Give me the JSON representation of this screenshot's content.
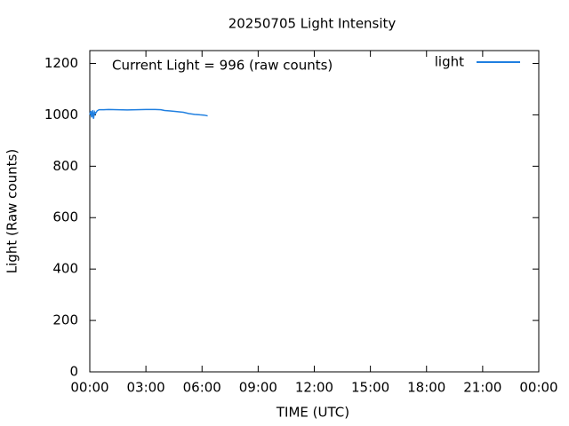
{
  "chart_data": {
    "type": "line",
    "title": "20250705 Light Intensity",
    "x_label": "TIME (UTC)",
    "y_label": "Light (Raw counts)",
    "annotation": "Current Light = 996 (raw counts)",
    "x": [
      0,
      0.05,
      0.1,
      0.15,
      0.2,
      0.25,
      0.3,
      0.4,
      0.5,
      0.75,
      1,
      1.5,
      2,
      2.5,
      3,
      3.5,
      3.8,
      4,
      4.3,
      4.6,
      5,
      5.3,
      5.6,
      5.9,
      6.1,
      6.3
    ],
    "series": [
      {
        "name": "light",
        "color": "#1f7fe0",
        "values": [
          1000,
          1015,
          990,
          1018,
          985,
          1012,
          1005,
          1016,
          1020,
          1020,
          1021,
          1020,
          1019,
          1020,
          1021,
          1021,
          1020,
          1017,
          1015,
          1013,
          1010,
          1005,
          1002,
          1000,
          999,
          996
        ]
      }
    ],
    "xlim": [
      0,
      24
    ],
    "xticks": [
      {
        "value": 0,
        "label": "00:00"
      },
      {
        "value": 3,
        "label": "03:00"
      },
      {
        "value": 6,
        "label": "06:00"
      },
      {
        "value": 9,
        "label": "09:00"
      },
      {
        "value": 12,
        "label": "12:00"
      },
      {
        "value": 15,
        "label": "15:00"
      },
      {
        "value": 18,
        "label": "18:00"
      },
      {
        "value": 21,
        "label": "21:00"
      },
      {
        "value": 24,
        "label": "00:00"
      }
    ],
    "ylim": [
      0,
      1250
    ],
    "yticks": [
      0,
      200,
      400,
      600,
      800,
      1000,
      1200
    ],
    "grid": false,
    "legend": "top-right"
  }
}
